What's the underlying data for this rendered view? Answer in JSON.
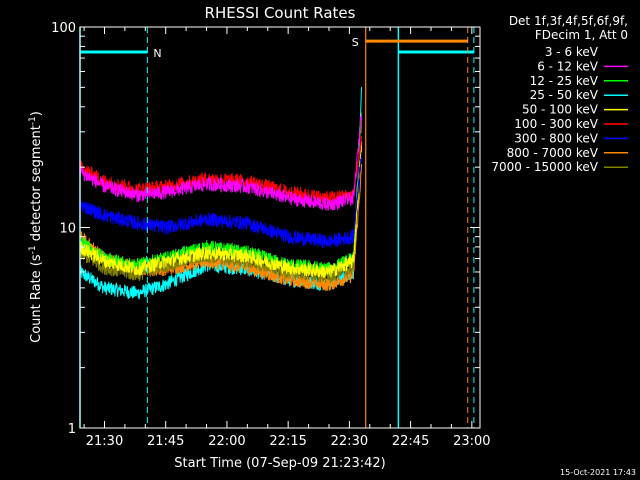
{
  "chart_data": {
    "type": "line",
    "title": "RHESSI Count Rates",
    "xlabel": "Start Time (07-Sep-09 21:23:42)",
    "ylabel_main": "Count Rate (s",
    "ylabel_sup": "-1",
    "ylabel_mid": " detector segment",
    "ylabel_end": ")",
    "y_scale": "log",
    "ylim": [
      1,
      100
    ],
    "xlim": [
      "21:24",
      "23:02"
    ],
    "x_ticks": [
      "21:30",
      "21:45",
      "22:00",
      "22:15",
      "22:30",
      "22:45",
      "23:00"
    ],
    "y_ticks": [
      "1",
      "10",
      "100"
    ],
    "legend_header": [
      "Det 1f,3f,4f,5f,6f,9f,",
      "FDecim 1, Att 0"
    ],
    "legend_placement": "right",
    "series": [
      {
        "name": "3 - 6 keV",
        "color": "#000000",
        "keys": [
          [
            "21:24",
            16
          ],
          [
            "21:30",
            14
          ],
          [
            "21:38",
            12.5
          ],
          [
            "21:45",
            12.5
          ],
          [
            "21:55",
            13.5
          ],
          [
            "22:05",
            13
          ],
          [
            "22:15",
            11.5
          ],
          [
            "22:25",
            11
          ],
          [
            "22:31",
            11.5
          ],
          [
            "22:33",
            30
          ]
        ]
      },
      {
        "name": "6 - 12 keV",
        "color": "#ff00ff",
        "keys": [
          [
            "21:24",
            19
          ],
          [
            "21:30",
            16
          ],
          [
            "21:38",
            14.5
          ],
          [
            "21:45",
            15
          ],
          [
            "21:55",
            16.5
          ],
          [
            "22:05",
            16
          ],
          [
            "22:15",
            14
          ],
          [
            "22:25",
            13
          ],
          [
            "22:31",
            14
          ],
          [
            "22:33",
            38
          ]
        ]
      },
      {
        "name": "12 - 25 keV",
        "color": "#00ff00",
        "keys": [
          [
            "21:24",
            8.5
          ],
          [
            "21:30",
            7
          ],
          [
            "21:38",
            6.5
          ],
          [
            "21:45",
            7
          ],
          [
            "21:55",
            8
          ],
          [
            "22:05",
            7.5
          ],
          [
            "22:15",
            6.5
          ],
          [
            "22:25",
            6.2
          ],
          [
            "22:31",
            7
          ],
          [
            "22:33",
            32
          ]
        ]
      },
      {
        "name": "25 - 50 keV",
        "color": "#00ffff",
        "keys": [
          [
            "21:24",
            6
          ],
          [
            "21:30",
            5
          ],
          [
            "21:38",
            4.7
          ],
          [
            "21:45",
            5.2
          ],
          [
            "21:55",
            6.5
          ],
          [
            "22:05",
            6.2
          ],
          [
            "22:15",
            5.5
          ],
          [
            "22:25",
            5.2
          ],
          [
            "22:31",
            6
          ],
          [
            "22:33",
            48
          ]
        ]
      },
      {
        "name": "50 - 100 keV",
        "color": "#ffff00",
        "keys": [
          [
            "21:24",
            8
          ],
          [
            "21:30",
            6.8
          ],
          [
            "21:38",
            6.2
          ],
          [
            "21:45",
            6.8
          ],
          [
            "21:55",
            7.5
          ],
          [
            "22:05",
            7.2
          ],
          [
            "22:15",
            6.3
          ],
          [
            "22:25",
            6
          ],
          [
            "22:31",
            6.8
          ],
          [
            "22:33",
            26
          ]
        ]
      },
      {
        "name": "100 - 300 keV",
        "color": "#ff0000",
        "keys": [
          [
            "21:24",
            20
          ],
          [
            "21:30",
            17
          ],
          [
            "21:38",
            15.5
          ],
          [
            "21:45",
            16
          ],
          [
            "21:55",
            17.5
          ],
          [
            "22:05",
            17
          ],
          [
            "22:15",
            15
          ],
          [
            "22:25",
            14
          ],
          [
            "22:31",
            14.5
          ],
          [
            "22:33",
            28
          ]
        ]
      },
      {
        "name": "300 - 800 keV",
        "color": "#0000ff",
        "keys": [
          [
            "21:24",
            13
          ],
          [
            "21:30",
            11.5
          ],
          [
            "21:38",
            10.5
          ],
          [
            "21:45",
            10
          ],
          [
            "21:55",
            11
          ],
          [
            "22:05",
            10.5
          ],
          [
            "22:15",
            9
          ],
          [
            "22:25",
            8.5
          ],
          [
            "22:31",
            9
          ],
          [
            "22:33",
            24
          ]
        ]
      },
      {
        "name": "800 - 7000 keV",
        "color": "#ff8800",
        "keys": [
          [
            "21:24",
            9
          ],
          [
            "21:30",
            7
          ],
          [
            "21:38",
            6.2
          ],
          [
            "21:45",
            6.2
          ],
          [
            "21:55",
            6.8
          ],
          [
            "22:05",
            6.3
          ],
          [
            "22:15",
            5.5
          ],
          [
            "22:25",
            5.2
          ],
          [
            "22:31",
            5.8
          ],
          [
            "22:33",
            20
          ]
        ]
      },
      {
        "name": "7000 - 15000 keV",
        "color": "#808000",
        "keys": [
          [
            "21:24",
            7.5
          ],
          [
            "21:30",
            6.3
          ],
          [
            "21:38",
            5.8
          ],
          [
            "21:45",
            6.5
          ],
          [
            "21:55",
            7.2
          ],
          [
            "22:05",
            6.8
          ],
          [
            "22:15",
            6
          ],
          [
            "22:25",
            5.7
          ],
          [
            "22:31",
            6.3
          ],
          [
            "22:33",
            36
          ]
        ]
      }
    ],
    "annotations": {
      "n_label": "N",
      "s_label": "S",
      "saa_label_color": "#ff8800",
      "night_color": "#00ffff",
      "night_intervals": [
        [
          "21:24",
          "21:40:30"
        ],
        [
          "22:42",
          "23:00:30"
        ]
      ],
      "night_bar_y": 75,
      "saa_interval": [
        "22:34",
        "22:59"
      ],
      "saa_bar_y": 85
    }
  },
  "timestamp": "15-Oct-2021 17:43"
}
